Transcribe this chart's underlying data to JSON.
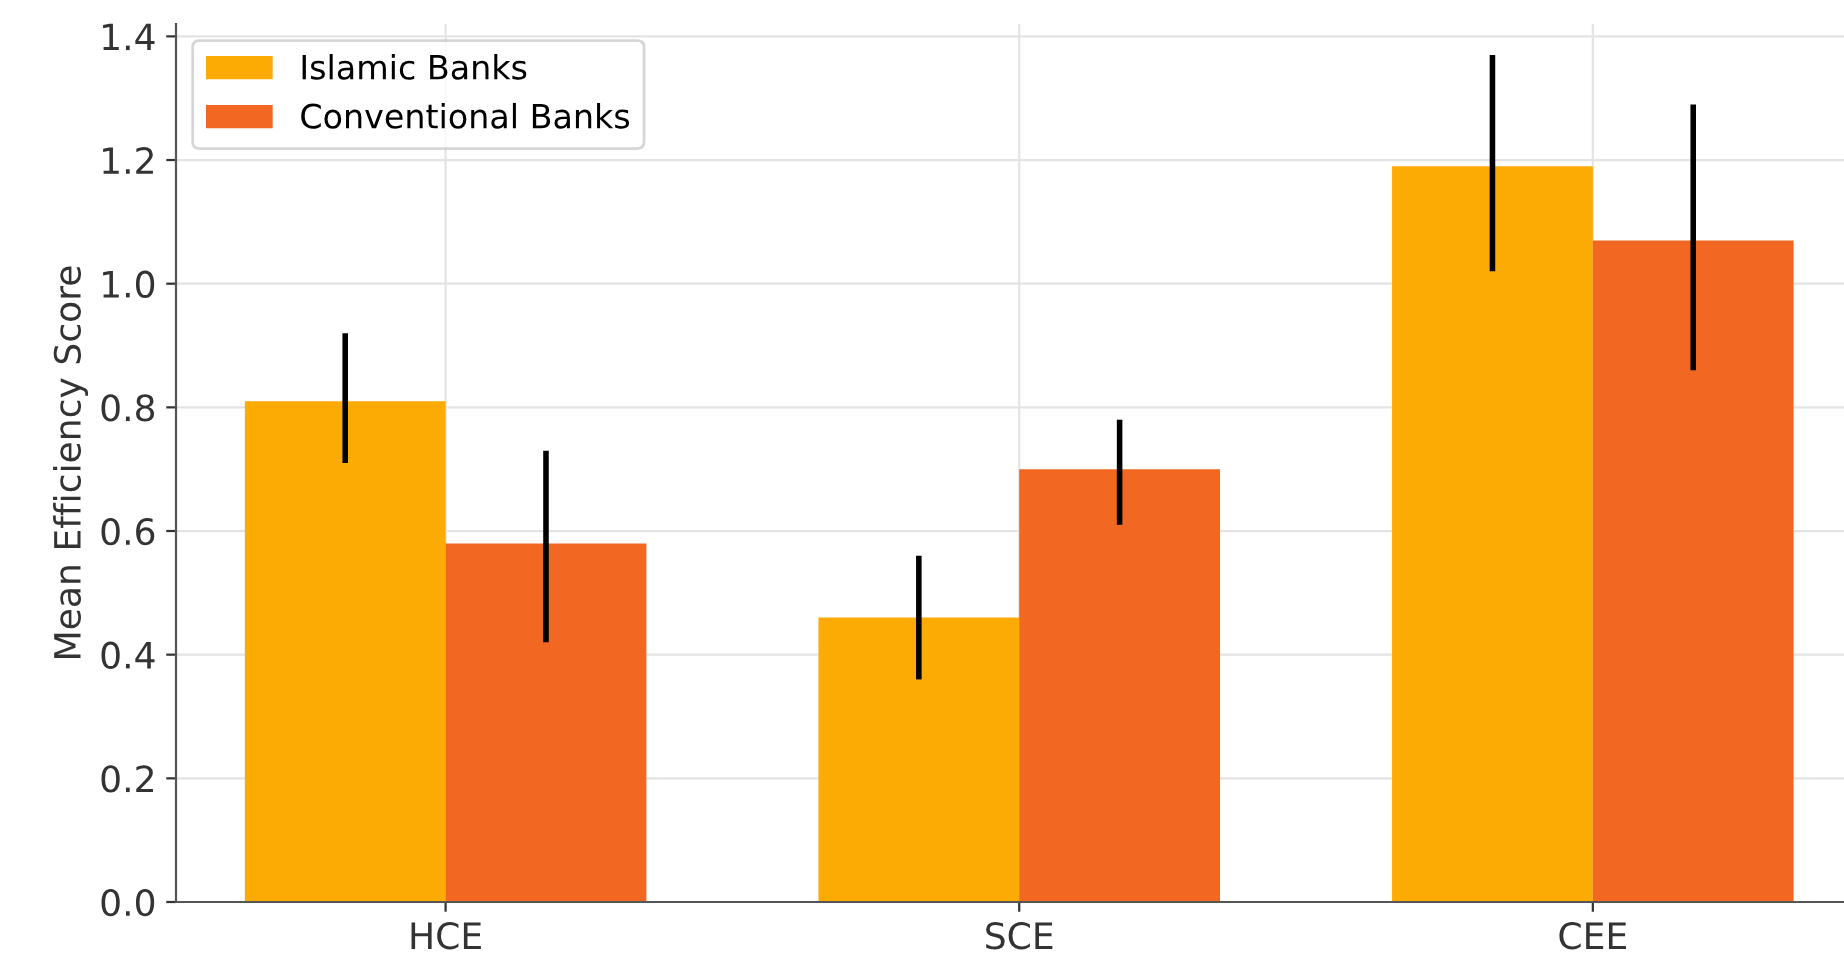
{
  "chart_data": {
    "type": "bar",
    "ylabel": "Mean Efficiency Score",
    "categories": [
      "HCE",
      "SCE",
      "CEE"
    ],
    "series": [
      {
        "name": "Islamic Banks",
        "color": "#fcaa04",
        "values": [
          0.81,
          0.46,
          1.19
        ],
        "errors": [
          [
            0.71,
            0.92
          ],
          [
            0.36,
            0.56
          ],
          [
            1.02,
            1.37
          ]
        ]
      },
      {
        "name": "Conventional Banks",
        "color": "#f26722",
        "values": [
          0.58,
          0.7,
          1.07
        ],
        "errors": [
          [
            0.42,
            0.73
          ],
          [
            0.61,
            0.78
          ],
          [
            0.86,
            1.29
          ]
        ]
      }
    ],
    "ylim": [
      0,
      1.42
    ],
    "yticks": [
      {
        "value": 0,
        "label": "0.0"
      },
      0.2,
      0.4,
      0.6,
      0.8,
      {
        "value": 1,
        "label": "1.0"
      },
      1.2,
      1.4
    ],
    "grid": true,
    "legend": "top left"
  }
}
